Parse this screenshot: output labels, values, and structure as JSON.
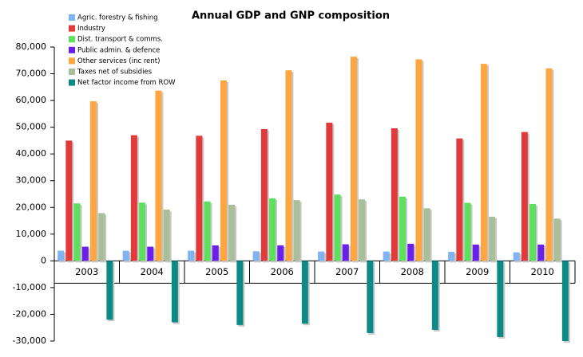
{
  "chart_data": {
    "type": "bar",
    "title": "Annual GDP and GNP composition",
    "categories": [
      "2003",
      "2004",
      "2005",
      "2006",
      "2007",
      "2008",
      "2009",
      "2010"
    ],
    "series": [
      {
        "name": "Agric. forestry & fishing",
        "color": "#7fb4f0",
        "values": [
          3800,
          3800,
          3800,
          3600,
          3500,
          3500,
          3400,
          3200
        ]
      },
      {
        "name": "Industry",
        "color": "#e03a3a",
        "values": [
          45000,
          47000,
          46800,
          49300,
          51700,
          49600,
          45800,
          48200
        ]
      },
      {
        "name": "Dist. transport & comms.",
        "color": "#5ee05e",
        "values": [
          21500,
          21800,
          22200,
          23400,
          24800,
          24000,
          21700,
          21300
        ]
      },
      {
        "name": "Public admin. & defence",
        "color": "#6a1fea",
        "values": [
          5300,
          5300,
          5800,
          5800,
          6200,
          6400,
          6100,
          6100
        ]
      },
      {
        "name": "Other services (inc rent)",
        "color": "#ffa640",
        "values": [
          59700,
          63700,
          67500,
          71300,
          76400,
          75400,
          73700,
          72000
        ]
      },
      {
        "name": "Taxes net of subsidies",
        "color": "#a9bf99",
        "values": [
          17900,
          19200,
          21000,
          22700,
          23000,
          19700,
          16500,
          15800
        ]
      },
      {
        "name": "Net factor income from ROW",
        "color": "#0e8a86",
        "values": [
          -22000,
          -23000,
          -24000,
          -23500,
          -27000,
          -25800,
          -28500,
          -30000
        ]
      }
    ],
    "ylim": [
      -30000,
      80000
    ],
    "yticks": [
      {
        "value": -30000,
        "label": "-30,000"
      },
      {
        "value": -20000,
        "label": "-20,000"
      },
      {
        "value": -10000,
        "label": "-10,000"
      },
      0,
      {
        "value": 10000,
        "label": "10,000"
      },
      {
        "value": 20000,
        "label": "20,000"
      },
      {
        "value": 30000,
        "label": "30,000"
      },
      {
        "value": 40000,
        "label": "40,000"
      },
      {
        "value": 50000,
        "label": "50,000"
      },
      {
        "value": 60000,
        "label": "60,000"
      },
      {
        "value": 70000,
        "label": "70,000"
      },
      {
        "value": 80000,
        "label": "80,000"
      }
    ]
  }
}
